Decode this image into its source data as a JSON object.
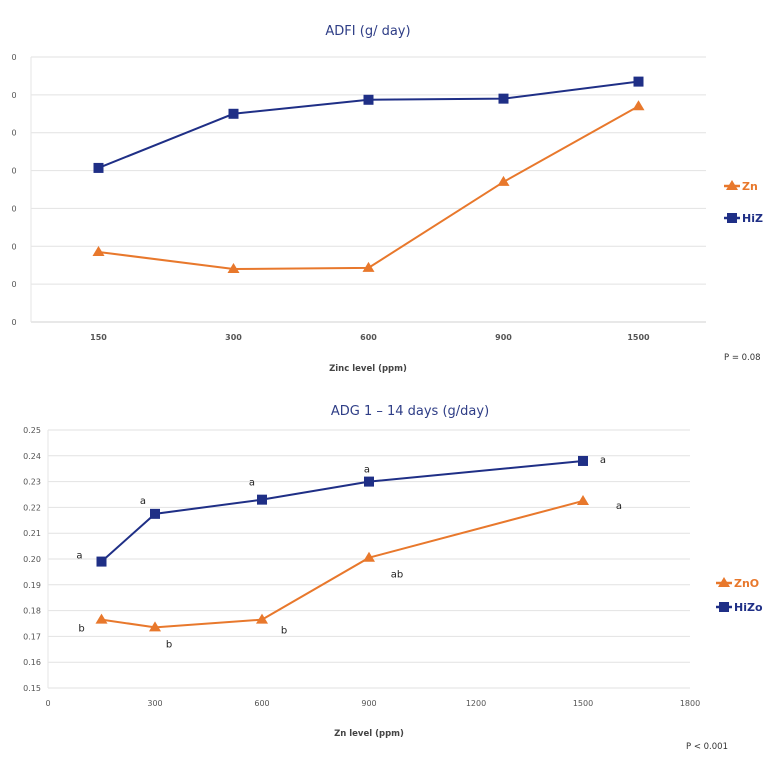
{
  "colors": {
    "ZnO": "#e8782c",
    "HiZox": "#1f2f86",
    "grid": "#e2e2e2"
  },
  "chart_data": [
    {
      "type": "line",
      "title": "ADFI (g/ day)",
      "xlabel": "Zinc level (ppm)",
      "categories": [
        "150",
        "300",
        "600",
        "900",
        "1500"
      ],
      "y_tick_labels": [
        "0",
        "0",
        "0",
        "0",
        "0",
        "0",
        "0",
        "0"
      ],
      "y_scale_note": "tick labels truncated; values in gridline steps",
      "ylim": [
        0,
        7
      ],
      "grid": true,
      "legend_placement": "right",
      "series": [
        {
          "name": "Zn",
          "marker": "triangle",
          "color_key": "ZnO",
          "values": [
            1.85,
            1.4,
            1.43,
            3.7,
            5.7
          ]
        },
        {
          "name": "HiZ",
          "marker": "square",
          "color_key": "HiZox",
          "values": [
            4.07,
            5.5,
            5.87,
            5.9,
            6.35
          ]
        }
      ],
      "annotation": "P = 0.08"
    },
    {
      "type": "line",
      "title": "ADG 1 – 14 days (g/day)",
      "xlabel": "Zn level (ppm)",
      "x_ticks": [
        0,
        300,
        600,
        900,
        1200,
        1500,
        1800
      ],
      "xlim": [
        0,
        1800
      ],
      "y_tick_labels": [
        "0.15",
        "0.16",
        "0.17",
        "0.18",
        "0.19",
        "0.20",
        "0.21",
        "0.22",
        "0.23",
        "0.24",
        "0.25"
      ],
      "ylim": [
        0.15,
        0.25
      ],
      "grid": true,
      "legend_placement": "right",
      "x": [
        150,
        300,
        600,
        900,
        1500
      ],
      "series": [
        {
          "name": "ZnO",
          "marker": "triangle",
          "color_key": "ZnO",
          "values": [
            0.1765,
            0.1735,
            0.1765,
            0.2005,
            0.2225
          ],
          "labels": [
            "b",
            "b",
            "b",
            "ab",
            "a"
          ]
        },
        {
          "name": "HiZo",
          "marker": "square",
          "color_key": "HiZox",
          "values": [
            0.199,
            0.2175,
            0.223,
            0.23,
            0.238
          ],
          "labels": [
            "a",
            "a",
            "a",
            "a",
            "a"
          ]
        }
      ],
      "annotation": "P < 0.001"
    }
  ]
}
